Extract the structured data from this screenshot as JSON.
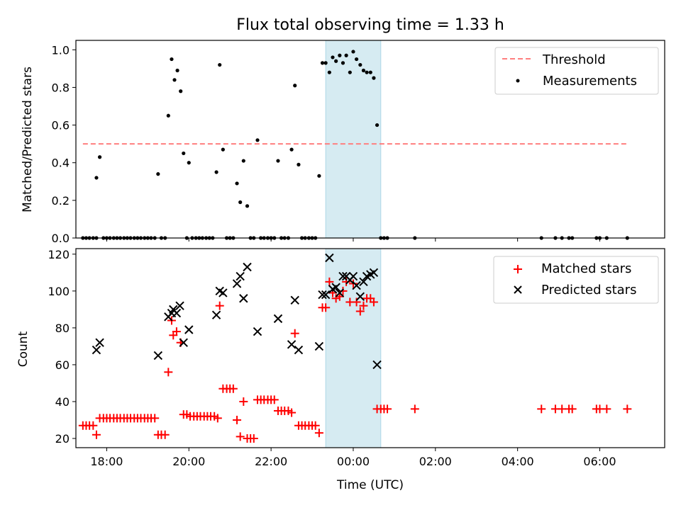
{
  "chart_data": [
    {
      "type": "scatter",
      "title": "Flux total observing time = 1.33 h",
      "ylabel": "Matched/Predicted stars",
      "xlabel": "",
      "xlim": [
        17.25,
        31.58
      ],
      "ylim": [
        0,
        1.05
      ],
      "yticks": [
        "0.0",
        "0.2",
        "0.4",
        "0.6",
        "0.8",
        "1.0"
      ],
      "grid": false,
      "legend_position": "top-right",
      "highlight_span": [
        23.33,
        24.67
      ],
      "threshold": {
        "name": "Threshold",
        "value": 0.5,
        "x_range": [
          17.42,
          30.67
        ]
      },
      "series": [
        {
          "name": "Measurements",
          "points": [
            [
              17.42,
              0
            ],
            [
              17.5,
              0
            ],
            [
              17.58,
              0
            ],
            [
              17.67,
              0
            ],
            [
              17.75,
              0
            ],
            [
              17.75,
              0.32
            ],
            [
              17.83,
              0.43
            ],
            [
              17.92,
              0
            ],
            [
              18.0,
              0
            ],
            [
              18.08,
              0
            ],
            [
              18.17,
              0
            ],
            [
              18.25,
              0
            ],
            [
              18.33,
              0
            ],
            [
              18.42,
              0
            ],
            [
              18.5,
              0
            ],
            [
              18.58,
              0
            ],
            [
              18.67,
              0
            ],
            [
              18.75,
              0
            ],
            [
              18.83,
              0
            ],
            [
              18.92,
              0
            ],
            [
              19.0,
              0
            ],
            [
              19.08,
              0
            ],
            [
              19.17,
              0
            ],
            [
              19.25,
              0.34
            ],
            [
              19.33,
              0
            ],
            [
              19.42,
              0
            ],
            [
              19.5,
              0.65
            ],
            [
              19.58,
              0.95
            ],
            [
              19.65,
              0.84
            ],
            [
              19.72,
              0.89
            ],
            [
              19.8,
              0.78
            ],
            [
              19.87,
              0.45
            ],
            [
              20.0,
              0.4
            ],
            [
              19.95,
              0
            ],
            [
              20.08,
              0
            ],
            [
              20.17,
              0
            ],
            [
              20.25,
              0
            ],
            [
              20.33,
              0
            ],
            [
              20.42,
              0
            ],
            [
              20.5,
              0
            ],
            [
              20.58,
              0
            ],
            [
              20.67,
              0.35
            ],
            [
              20.75,
              0.92
            ],
            [
              20.83,
              0.47
            ],
            [
              20.92,
              0
            ],
            [
              21.0,
              0
            ],
            [
              21.08,
              0
            ],
            [
              21.17,
              0.29
            ],
            [
              21.25,
              0.19
            ],
            [
              21.33,
              0.41
            ],
            [
              21.42,
              0.17
            ],
            [
              21.5,
              0
            ],
            [
              21.58,
              0
            ],
            [
              21.67,
              0.52
            ],
            [
              21.75,
              0
            ],
            [
              21.83,
              0
            ],
            [
              21.92,
              0
            ],
            [
              22.0,
              0
            ],
            [
              22.08,
              0
            ],
            [
              22.17,
              0.41
            ],
            [
              22.25,
              0
            ],
            [
              22.33,
              0
            ],
            [
              22.42,
              0
            ],
            [
              22.5,
              0.47
            ],
            [
              22.58,
              0.81
            ],
            [
              22.67,
              0.39
            ],
            [
              22.75,
              0
            ],
            [
              22.83,
              0
            ],
            [
              22.92,
              0
            ],
            [
              23.0,
              0
            ],
            [
              23.08,
              0
            ],
            [
              23.17,
              0.33
            ],
            [
              23.25,
              0.93
            ],
            [
              23.33,
              0.93
            ],
            [
              23.42,
              0.88
            ],
            [
              23.5,
              0.96
            ],
            [
              23.58,
              0.94
            ],
            [
              23.67,
              0.97
            ],
            [
              23.75,
              0.93
            ],
            [
              23.83,
              0.97
            ],
            [
              23.92,
              0.88
            ],
            [
              24.0,
              0.99
            ],
            [
              24.08,
              0.95
            ],
            [
              24.17,
              0.92
            ],
            [
              24.25,
              0.89
            ],
            [
              24.33,
              0.88
            ],
            [
              24.42,
              0.88
            ],
            [
              24.5,
              0.85
            ],
            [
              24.58,
              0.6
            ],
            [
              24.67,
              0
            ],
            [
              24.75,
              0
            ],
            [
              24.83,
              0
            ],
            [
              25.5,
              0
            ],
            [
              28.58,
              0
            ],
            [
              28.92,
              0
            ],
            [
              29.08,
              0
            ],
            [
              29.25,
              0
            ],
            [
              29.33,
              0
            ],
            [
              29.92,
              0
            ],
            [
              30.0,
              0
            ],
            [
              30.17,
              0
            ],
            [
              30.67,
              0
            ]
          ]
        }
      ]
    },
    {
      "type": "scatter",
      "title": "",
      "ylabel": "Count",
      "xlabel": "Time (UTC)",
      "xlim": [
        17.25,
        31.58
      ],
      "ylim": [
        15,
        123
      ],
      "yticks": [
        "20",
        "40",
        "60",
        "80",
        "100",
        "120"
      ],
      "xticks": [
        {
          "value": 18,
          "label": "18:00"
        },
        {
          "value": 20,
          "label": "20:00"
        },
        {
          "value": 22,
          "label": "22:00"
        },
        {
          "value": 24,
          "label": "00:00"
        },
        {
          "value": 26,
          "label": "02:00"
        },
        {
          "value": 28,
          "label": "04:00"
        },
        {
          "value": 30,
          "label": "06:00"
        }
      ],
      "grid": false,
      "legend_position": "top-right",
      "highlight_span": [
        23.33,
        24.67
      ],
      "series": [
        {
          "name": "Matched stars",
          "color": "#ff0000",
          "marker": "plus",
          "points": [
            [
              17.42,
              27
            ],
            [
              17.5,
              27
            ],
            [
              17.58,
              27
            ],
            [
              17.67,
              27
            ],
            [
              17.75,
              22
            ],
            [
              17.83,
              31
            ],
            [
              17.92,
              31
            ],
            [
              18.0,
              31
            ],
            [
              18.08,
              31
            ],
            [
              18.17,
              31
            ],
            [
              18.25,
              31
            ],
            [
              18.33,
              31
            ],
            [
              18.42,
              31
            ],
            [
              18.5,
              31
            ],
            [
              18.58,
              31
            ],
            [
              18.67,
              31
            ],
            [
              18.75,
              31
            ],
            [
              18.83,
              31
            ],
            [
              18.92,
              31
            ],
            [
              19.0,
              31
            ],
            [
              19.08,
              31
            ],
            [
              19.17,
              31
            ],
            [
              19.25,
              22
            ],
            [
              19.33,
              22
            ],
            [
              19.42,
              22
            ],
            [
              19.5,
              56
            ],
            [
              19.58,
              84
            ],
            [
              19.62,
              76
            ],
            [
              19.7,
              78
            ],
            [
              19.8,
              72
            ],
            [
              19.87,
              33
            ],
            [
              19.95,
              33
            ],
            [
              20.03,
              32
            ],
            [
              20.12,
              32
            ],
            [
              20.2,
              32
            ],
            [
              20.28,
              32
            ],
            [
              20.37,
              32
            ],
            [
              20.45,
              32
            ],
            [
              20.53,
              32
            ],
            [
              20.62,
              32
            ],
            [
              20.7,
              31
            ],
            [
              20.75,
              92
            ],
            [
              20.83,
              47
            ],
            [
              20.92,
              47
            ],
            [
              21.0,
              47
            ],
            [
              21.08,
              47
            ],
            [
              21.17,
              30
            ],
            [
              21.25,
              21
            ],
            [
              21.33,
              40
            ],
            [
              21.42,
              20
            ],
            [
              21.5,
              20
            ],
            [
              21.58,
              20
            ],
            [
              21.67,
              41
            ],
            [
              21.75,
              41
            ],
            [
              21.83,
              41
            ],
            [
              21.92,
              41
            ],
            [
              22.0,
              41
            ],
            [
              22.08,
              41
            ],
            [
              22.17,
              35
            ],
            [
              22.25,
              35
            ],
            [
              22.33,
              35
            ],
            [
              22.42,
              35
            ],
            [
              22.5,
              34
            ],
            [
              22.58,
              77
            ],
            [
              22.67,
              27
            ],
            [
              22.75,
              27
            ],
            [
              22.83,
              27
            ],
            [
              22.92,
              27
            ],
            [
              23.0,
              27
            ],
            [
              23.08,
              27
            ],
            [
              23.17,
              23
            ],
            [
              23.25,
              91
            ],
            [
              23.33,
              91
            ],
            [
              23.42,
              105
            ],
            [
              23.5,
              99
            ],
            [
              23.58,
              96
            ],
            [
              23.67,
              97
            ],
            [
              23.75,
              100
            ],
            [
              23.83,
              105
            ],
            [
              23.92,
              94
            ],
            [
              24.0,
              104
            ],
            [
              24.08,
              94
            ],
            [
              24.17,
              89
            ],
            [
              24.25,
              92
            ],
            [
              24.33,
              96
            ],
            [
              24.42,
              96
            ],
            [
              24.5,
              94
            ],
            [
              24.58,
              36
            ],
            [
              24.67,
              36
            ],
            [
              24.75,
              36
            ],
            [
              24.83,
              36
            ],
            [
              25.5,
              36
            ],
            [
              28.58,
              36
            ],
            [
              28.92,
              36
            ],
            [
              29.08,
              36
            ],
            [
              29.25,
              36
            ],
            [
              29.33,
              36
            ],
            [
              29.92,
              36
            ],
            [
              30.0,
              36
            ],
            [
              30.17,
              36
            ],
            [
              30.67,
              36
            ]
          ]
        },
        {
          "name": "Predicted stars",
          "color": "#000000",
          "marker": "x",
          "points": [
            [
              17.75,
              68
            ],
            [
              17.83,
              72
            ],
            [
              19.25,
              65
            ],
            [
              19.5,
              86
            ],
            [
              19.58,
              88
            ],
            [
              19.62,
              90
            ],
            [
              19.7,
              88
            ],
            [
              19.78,
              92
            ],
            [
              19.87,
              72
            ],
            [
              20.0,
              79
            ],
            [
              20.67,
              87
            ],
            [
              20.75,
              100
            ],
            [
              20.83,
              99
            ],
            [
              21.17,
              104
            ],
            [
              21.25,
              108
            ],
            [
              21.33,
              96
            ],
            [
              21.42,
              113
            ],
            [
              21.67,
              78
            ],
            [
              22.17,
              85
            ],
            [
              22.5,
              71
            ],
            [
              22.58,
              95
            ],
            [
              22.67,
              68
            ],
            [
              23.17,
              70
            ],
            [
              23.25,
              98
            ],
            [
              23.33,
              98
            ],
            [
              23.42,
              118
            ],
            [
              23.5,
              101
            ],
            [
              23.58,
              102
            ],
            [
              23.67,
              99
            ],
            [
              23.75,
              108
            ],
            [
              23.83,
              108
            ],
            [
              23.92,
              106
            ],
            [
              24.0,
              108
            ],
            [
              24.08,
              103
            ],
            [
              24.17,
              97
            ],
            [
              24.25,
              105
            ],
            [
              24.33,
              108
            ],
            [
              24.42,
              109
            ],
            [
              24.5,
              110
            ],
            [
              24.58,
              60
            ]
          ]
        }
      ]
    }
  ]
}
